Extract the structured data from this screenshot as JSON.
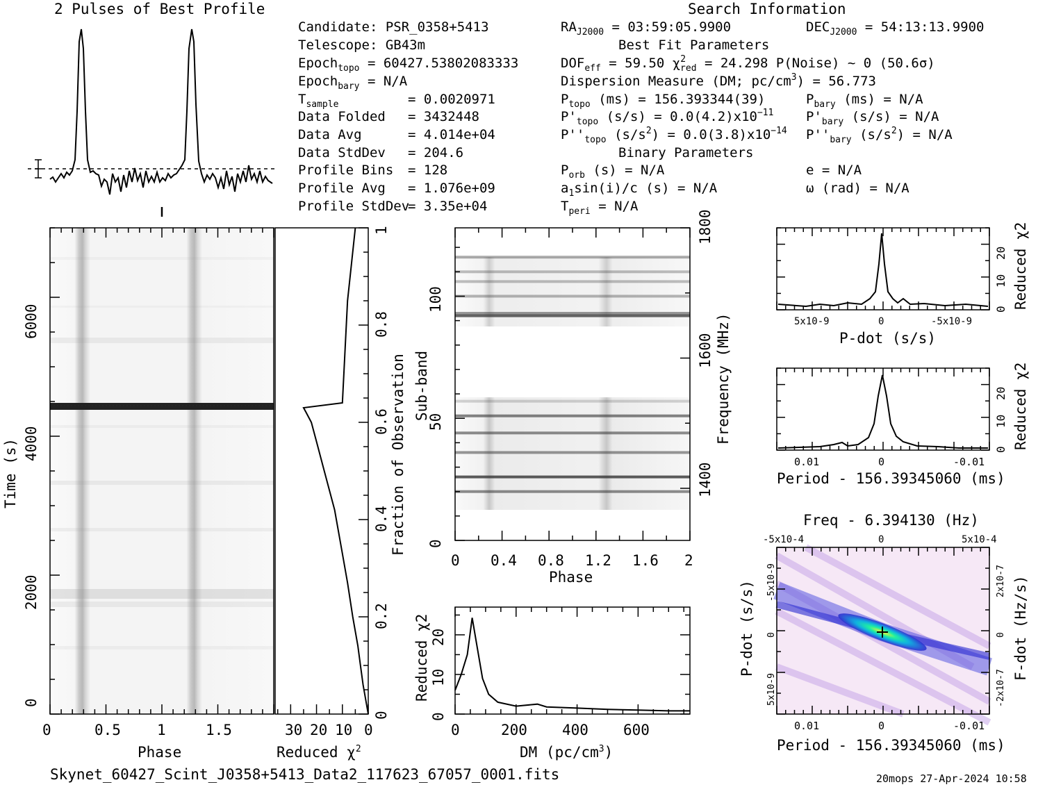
{
  "figure": {
    "profile_title": "2 Pulses of Best Profile",
    "search_title": "Search Information",
    "filename": "Skynet_60427_Scint_J0358+5413_Data2_117623_67057_0001.fits",
    "footer_right": "20mops 27-Apr-2024 10:58"
  },
  "info": {
    "candidate": "Candidate:  PSR_0358+5413",
    "telescope": "Telescope:  GB43m",
    "epoch_topo_label": "Epoch",
    "epoch_topo_sub": "topo",
    "epoch_topo_val": " = 60427.53802083333",
    "epoch_bary_label": "Epoch",
    "epoch_bary_sub": "bary",
    "epoch_bary_val": " = N/A",
    "tsample_label": "T",
    "tsample_sub": "sample",
    "tsample_val": "=  0.0020971",
    "rows": [
      {
        "label": "Data Folded",
        "value": "=  3432448"
      },
      {
        "label": "Data Avg",
        "value": "=  4.014e+04"
      },
      {
        "label": "Data StdDev",
        "value": "=  204.6"
      },
      {
        "label": "Profile Bins",
        "value": "=  128"
      },
      {
        "label": "Profile Avg",
        "value": "=  1.076e+09"
      },
      {
        "label": "Profile StdDev",
        "value": "=  3.35e+04"
      }
    ],
    "ra": "RA",
    "ra_sub": "J2000",
    "ra_val": " = 03:59:05.9900",
    "dec": "DEC",
    "dec_sub": "J2000",
    "dec_val": " = 54:13:13.9900",
    "best_fit": "Best Fit Parameters",
    "dof": "DOF",
    "dof_sub": "eff",
    "dof_val": " = 59.50  ",
    "chi": "χ",
    "chi_sup": "2",
    "chi_sub": "red",
    "chi_val": " = 24.298  P(Noise) ~ 0   (50.6σ)",
    "dm_text": "Dispersion Measure (DM; pc/cm",
    "dm_sup": "3",
    "dm_val": ") = 56.773",
    "ptopo": "P",
    "ptopo_sub": "topo",
    "ptopo_val": " (ms) =  156.393344(39)",
    "pdtopo": "P'",
    "pdtopo_sub": "topo",
    "pdtopo_val": " (s/s) = 0.0(4.2)x10",
    "pdtopo_exp": "−11",
    "pddtopo": "P''",
    "pddtopo_sub": "topo",
    "pddtopo_val1": " (s/s",
    "pddtopo_sup": "2",
    "pddtopo_val2": ") = 0.0(3.8)x10",
    "pddtopo_exp": "−14",
    "pbary": "P",
    "pbary_sub": "bary",
    "pbary_val": " (ms) = N/A",
    "pdbary": "P'",
    "pdbary_sub": "bary",
    "pdbary_val": " (s/s) = N/A",
    "pddbary": "P''",
    "pddbary_sub": "bary",
    "pddbary_val1": " (s/s",
    "pddbary_sup": "2",
    "pddbary_val2": ") = N/A",
    "binary": "Binary Parameters",
    "porb": "P",
    "porb_sub": "orb",
    "porb_val": " (s) = N/A",
    "a1": "a",
    "a1_sub": "1",
    "a1_val": "sin(i)/c (s) = N/A",
    "tperi": "T",
    "tperi_sub": "peri",
    "tperi_val": " = N/A",
    "ecc": "e = N/A",
    "omega": "ω (rad) = N/A"
  },
  "chart_data": [
    {
      "type": "line",
      "title": "2 Pulses of Best Profile",
      "x": [
        0,
        0.0625,
        0.125,
        0.1875,
        0.25,
        0.28,
        0.3,
        0.32,
        0.35,
        0.4,
        0.5,
        0.6,
        0.7,
        0.8,
        0.9,
        1.0,
        1.1,
        1.2,
        1.25,
        1.28,
        1.3,
        1.32,
        1.35,
        1.4,
        1.5,
        1.6,
        1.7,
        1.8,
        1.9,
        2.0
      ],
      "values": [
        0.04,
        0.02,
        0.05,
        0.06,
        0.3,
        0.9,
        1.0,
        0.85,
        0.2,
        0.0,
        -0.05,
        0.0,
        -0.02,
        0.0,
        0.02,
        0.01,
        0.03,
        0.05,
        0.3,
        0.9,
        1.0,
        0.85,
        0.2,
        0.0,
        -0.05,
        0.0,
        -0.02,
        0.0,
        0.02,
        0.01
      ]
    },
    {
      "type": "heatmap",
      "xlabel": "Phase",
      "ylabel": "Time (s)",
      "xlim": [
        0,
        2
      ],
      "ylim": [
        0,
        7000
      ],
      "xticks": [
        "0",
        "0.5",
        "1",
        "1.5"
      ],
      "yticks": [
        "0",
        "2000",
        "4000",
        "6000"
      ]
    },
    {
      "type": "line",
      "xlabel_main": "Reduced ",
      "xlabel_sup": "χ",
      "xlabel_exp": "2",
      "ylabel": "Fraction of Observation",
      "xlim": [
        36,
        0
      ],
      "ylim": [
        0,
        1
      ],
      "xticks": [
        "30",
        "20",
        "10",
        "0"
      ],
      "yticks": [
        "0",
        "0.2",
        "0.4",
        "0.6",
        "0.8",
        "1"
      ],
      "x": [
        0,
        1,
        2,
        3,
        4,
        6,
        8,
        10,
        13,
        17,
        20,
        22,
        24,
        25,
        10,
        8,
        5
      ],
      "y": [
        0,
        0.03,
        0.06,
        0.1,
        0.14,
        0.2,
        0.27,
        0.33,
        0.42,
        0.5,
        0.56,
        0.6,
        0.62,
        0.63,
        0.64,
        0.85,
        1.0
      ]
    },
    {
      "type": "heatmap",
      "xlabel": "Phase",
      "ylabel": "Sub-band",
      "y2label": "Frequency (MHz)",
      "xlim": [
        0,
        2
      ],
      "ylim": [
        0,
        128
      ],
      "xticks": [
        "0",
        "0.4",
        "0.8",
        "1.2",
        "1.6",
        "2"
      ],
      "yticks": [
        "0",
        "50",
        "100"
      ],
      "y2ticks": [
        "1400",
        "1600",
        "1800"
      ]
    },
    {
      "type": "line",
      "xlabel": "DM (pc/cm3)",
      "ylabel": "Reduced χ2",
      "xlim": [
        0,
        770
      ],
      "ylim": [
        0,
        27
      ],
      "xticks": [
        "0",
        "200",
        "400",
        "600"
      ],
      "yticks": [
        "0",
        "10",
        "20"
      ],
      "x": [
        0,
        20,
        40,
        56,
        70,
        90,
        110,
        140,
        200,
        270,
        300,
        400,
        500,
        600,
        700,
        770
      ],
      "y": [
        6,
        10,
        15,
        24.3,
        18,
        9,
        5,
        3,
        2,
        2.5,
        1.8,
        1.5,
        1.2,
        1.0,
        0.8,
        0.8
      ]
    },
    {
      "type": "line",
      "xlabel": "P-dot (s/s)",
      "ylabel": "Reduced χ2",
      "xticks": [
        "5x10-9",
        "0",
        "-5x10-9"
      ],
      "yticks": [
        "0",
        "10",
        "20"
      ]
    },
    {
      "type": "line",
      "xlabel": "Period - 156.39345060 (ms)",
      "ylabel": "Reduced χ2",
      "xticks": [
        "0.01",
        "0",
        "-0.01"
      ],
      "yticks": [
        "0",
        "10",
        "20"
      ]
    },
    {
      "type": "heatmap",
      "title": "Freq - 6.394130 (Hz)",
      "xlabel": "Period - 156.39345060 (ms)",
      "ylabel": "P-dot (s/s)",
      "y2label": "F-dot (Hz/s)",
      "xticks": [
        "0.01",
        "0",
        "-0.01"
      ],
      "x2ticks": [
        "-5x10-4",
        "0",
        "5x10-4"
      ],
      "yticks": [
        "-5x10-9",
        "0",
        "5x10-9"
      ],
      "y2ticks": [
        "2x10-7",
        "0",
        "-2x10-7"
      ]
    }
  ]
}
